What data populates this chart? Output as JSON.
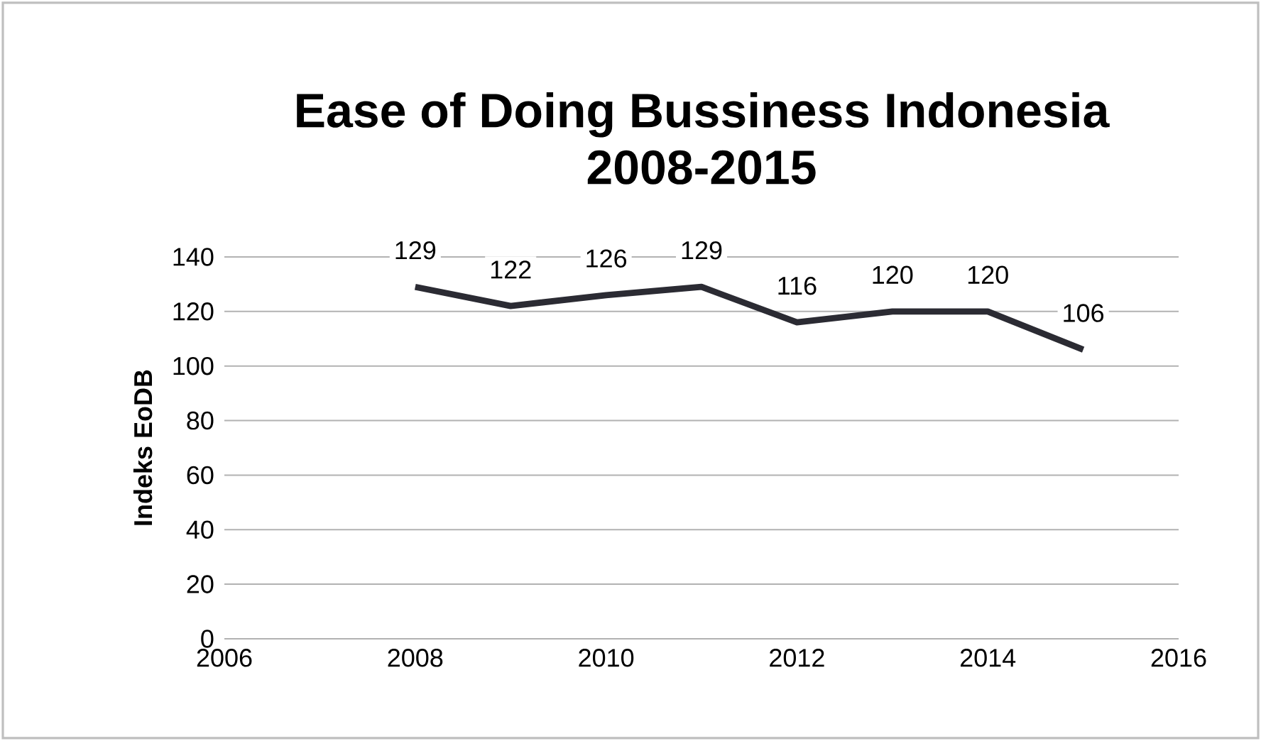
{
  "chart_data": {
    "type": "line",
    "title": "Ease of Doing Bussiness Indonesia\n2008-2015",
    "ylabel": "Indeks EoDB",
    "x": [
      2008,
      2009,
      2010,
      2011,
      2012,
      2013,
      2014,
      2015
    ],
    "series": [
      {
        "color": "#2b2b33",
        "values": [
          129,
          122,
          126,
          129,
          116,
          120,
          120,
          106
        ]
      }
    ],
    "xlim": [
      2006,
      2016
    ],
    "xticks": [
      2006,
      2008,
      2010,
      2012,
      2014,
      2016
    ],
    "ylim": [
      0,
      140
    ],
    "yticks": [
      0,
      20,
      40,
      60,
      80,
      100,
      120,
      140
    ],
    "grid": "y",
    "data_labels": true,
    "marker": "none",
    "line_style": "solid"
  }
}
